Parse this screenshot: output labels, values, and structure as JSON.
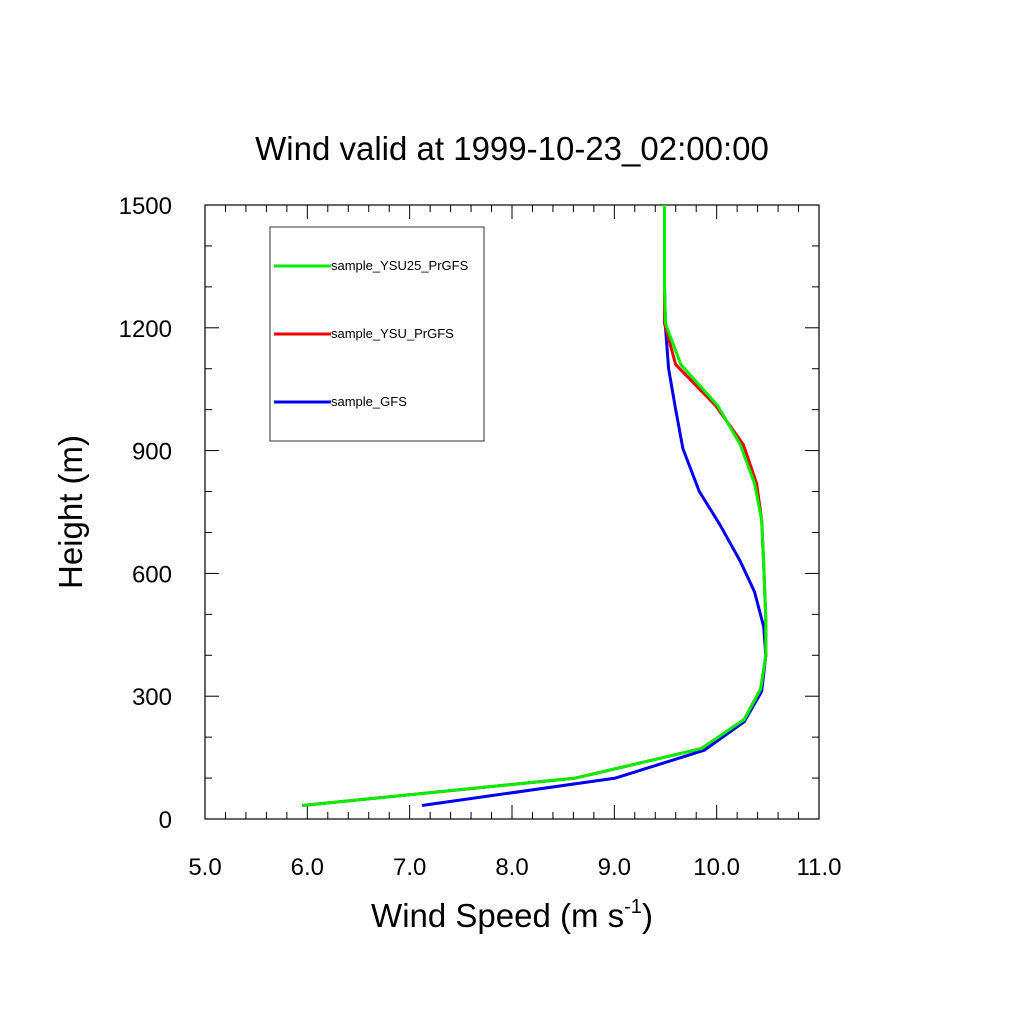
{
  "chart_data": {
    "type": "line",
    "title": "Wind valid at 1999-10-23_02:00:00",
    "xlabel": "Wind Speed (m s",
    "xlabel_sup": "-1",
    "xlabel_end": ")",
    "ylabel": "Height (m)",
    "xlim": [
      5.0,
      11.0
    ],
    "ylim": [
      0,
      1500
    ],
    "xticks": [
      "5.0",
      "6.0",
      "7.0",
      "8.0",
      "9.0",
      "10.0",
      "11.0"
    ],
    "yticks": [
      "0",
      "300",
      "600",
      "900",
      "1200",
      "1500"
    ],
    "grid": false,
    "legend_position": "top-left",
    "series": [
      {
        "name": "sample_YSU25_PrGFS",
        "color": "#00ee00",
        "points": [
          [
            5.95,
            33
          ],
          [
            8.62,
            100
          ],
          [
            9.85,
            172
          ],
          [
            10.27,
            243
          ],
          [
            10.43,
            318
          ],
          [
            10.48,
            400
          ],
          [
            10.48,
            490
          ],
          [
            10.46,
            620
          ],
          [
            10.44,
            730
          ],
          [
            10.37,
            820
          ],
          [
            10.23,
            915
          ],
          [
            10.01,
            1010
          ],
          [
            9.65,
            1110
          ],
          [
            9.5,
            1210
          ],
          [
            9.49,
            1300
          ],
          [
            9.49,
            1400
          ],
          [
            9.49,
            1500
          ]
        ]
      },
      {
        "name": "sample_YSU_PrGFS",
        "color": "#ee0000",
        "points": [
          [
            5.95,
            33
          ],
          [
            8.62,
            100
          ],
          [
            9.85,
            172
          ],
          [
            10.27,
            243
          ],
          [
            10.43,
            318
          ],
          [
            10.48,
            400
          ],
          [
            10.48,
            490
          ],
          [
            10.46,
            620
          ],
          [
            10.44,
            730
          ],
          [
            10.39,
            820
          ],
          [
            10.26,
            915
          ],
          [
            9.99,
            1010
          ],
          [
            9.6,
            1110
          ],
          [
            9.49,
            1210
          ],
          [
            9.49,
            1300
          ],
          [
            9.49,
            1400
          ],
          [
            9.49,
            1500
          ]
        ]
      },
      {
        "name": "sample_GFS",
        "color": "#0000ee",
        "points": [
          [
            7.12,
            33
          ],
          [
            9.01,
            100
          ],
          [
            9.88,
            168
          ],
          [
            10.27,
            238
          ],
          [
            10.44,
            312
          ],
          [
            10.48,
            400
          ],
          [
            10.46,
            470
          ],
          [
            10.37,
            555
          ],
          [
            10.23,
            630
          ],
          [
            10.03,
            720
          ],
          [
            9.83,
            800
          ],
          [
            9.67,
            905
          ],
          [
            9.6,
            1000
          ],
          [
            9.53,
            1100
          ],
          [
            9.5,
            1200
          ],
          [
            9.49,
            1300
          ],
          [
            9.49,
            1400
          ],
          [
            9.49,
            1500
          ]
        ]
      }
    ]
  }
}
